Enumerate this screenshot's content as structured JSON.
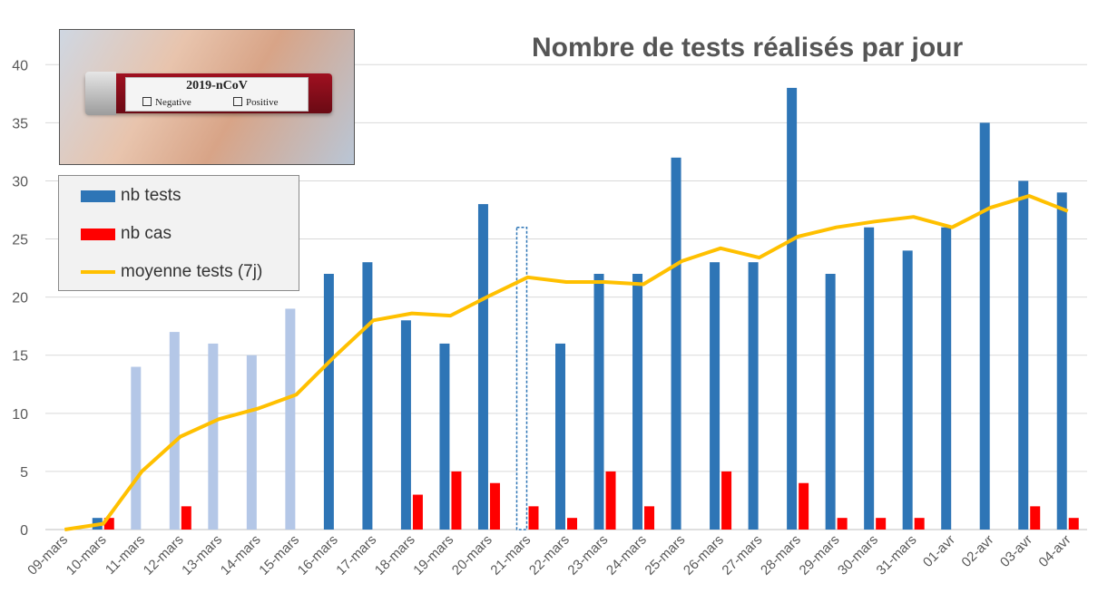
{
  "chart_data": {
    "type": "bar",
    "title": "Nombre de tests réalisés par jour",
    "xlabel": "",
    "ylabel": "",
    "ylim": [
      0,
      44
    ],
    "yticks": [
      0,
      5,
      10,
      15,
      20,
      25,
      30,
      35,
      40
    ],
    "grid": true,
    "legend_position": "top-left",
    "categories": [
      "09-mars",
      "10-mars",
      "11-mars",
      "12-mars",
      "13-mars",
      "14-mars",
      "15-mars",
      "16-mars",
      "17-mars",
      "18-mars",
      "19-mars",
      "20-mars",
      "21-mars",
      "22-mars",
      "23-mars",
      "24-mars",
      "25-mars",
      "26-mars",
      "27-mars",
      "28-mars",
      "29-mars",
      "30-mars",
      "31-mars",
      "01-avr",
      "02-avr",
      "03-avr",
      "04-avr"
    ],
    "series": [
      {
        "name": "nb tests",
        "kind": "bar",
        "color": "#2e75b6",
        "values": [
          0,
          1,
          14,
          17,
          16,
          15,
          19,
          22,
          23,
          18,
          16,
          28,
          26,
          16,
          22,
          22,
          32,
          23,
          23,
          38,
          22,
          26,
          24,
          26,
          35,
          30,
          29
        ],
        "light_color": "#b4c7e7",
        "light_indices": [
          2,
          3,
          4,
          5,
          6
        ],
        "outlined_indices": [
          12
        ]
      },
      {
        "name": "nb cas",
        "kind": "bar",
        "color": "#ff0000",
        "values": [
          0,
          1,
          0,
          2,
          0,
          0,
          0,
          0,
          0,
          3,
          5,
          4,
          2,
          1,
          5,
          2,
          0,
          5,
          0,
          4,
          1,
          1,
          1,
          0,
          0,
          2,
          1
        ]
      },
      {
        "name": "moyenne tests (7j)",
        "kind": "line",
        "color": "#ffc000",
        "values": [
          0,
          0.5,
          5,
          8,
          9.5,
          10.4,
          11.6,
          14.9,
          18.0,
          18.6,
          18.4,
          20.1,
          21.7,
          21.3,
          21.3,
          21.1,
          23.1,
          24.2,
          23.4,
          25.2,
          26.0,
          26.5,
          26.9,
          26.0,
          27.7,
          28.7,
          27.4
        ]
      }
    ]
  },
  "photo": {
    "label_title": "2019-nCoV",
    "option_negative": "Negative",
    "option_positive": "Positive"
  }
}
